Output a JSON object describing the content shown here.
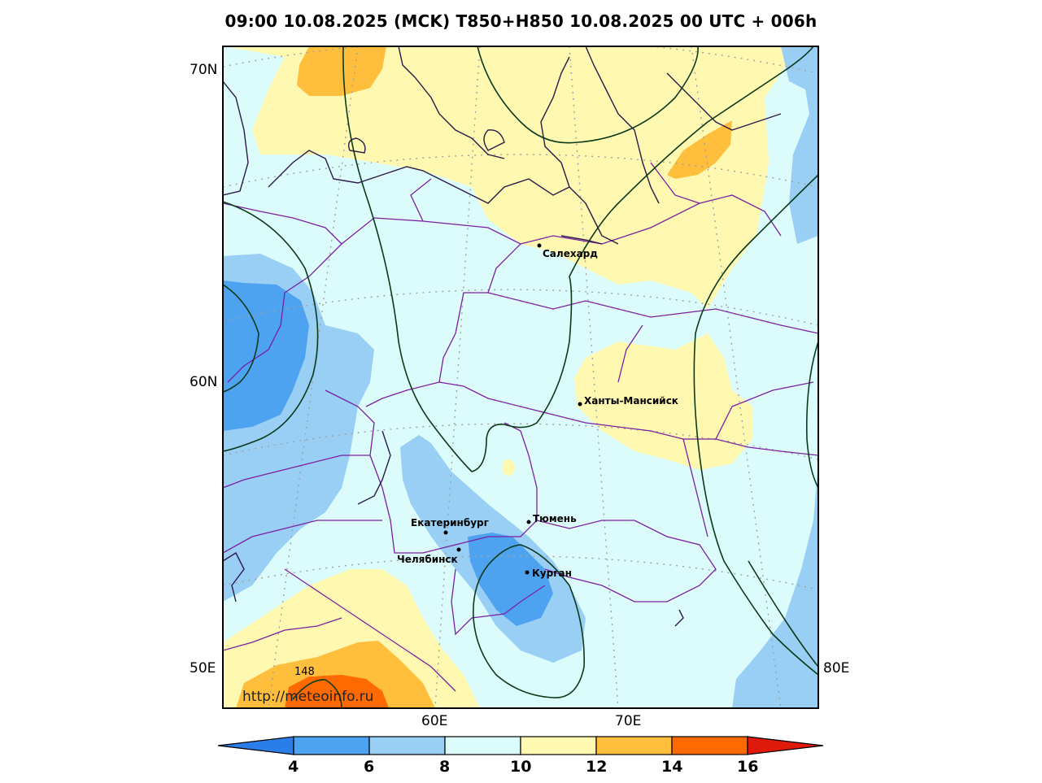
{
  "title": "09:00 10.08.2025 (MCK) T850+H850 10.08.2025 00 UTC + 006h",
  "lat_labels": [
    "70N",
    "60N",
    "50E"
  ],
  "lon_labels": [
    "60E",
    "70E",
    "80E"
  ],
  "cities": {
    "salekhard": "Салехард",
    "khanty": "Ханты-Мансийск",
    "ekaterinburg": "Екатеринбург",
    "tyumen": "Тюмень",
    "chelyabinsk": "Челябинск",
    "kurgan": "Курган"
  },
  "isoline_label": "148",
  "watermark": "http://meteoinfo.ru",
  "colorbar": {
    "ticks": [
      "4",
      "6",
      "8",
      "10",
      "12",
      "14",
      "16"
    ],
    "colors": [
      "#2b7de9",
      "#4ea3f0",
      "#99cff5",
      "#dcfcfc",
      "#fff8b0",
      "#ffbe3c",
      "#ff6a00",
      "#e01a0a"
    ]
  },
  "palette": {
    "t_4_6": "#4ea3f0",
    "t_6_8": "#99cff5",
    "t_8_10": "#dcfcfc",
    "t_10_12": "#fff8b0",
    "t_12_14": "#ffbe3c",
    "t_14_16": "#ff6a00",
    "border": "#7b1fa2",
    "coast": "#2a1a4a",
    "isoline": "#0a3a1a"
  }
}
